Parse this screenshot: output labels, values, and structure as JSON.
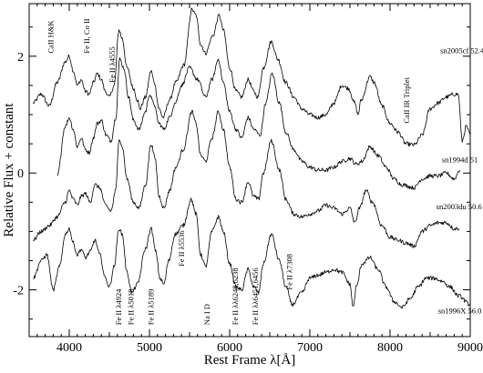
{
  "chart_data": {
    "type": "line",
    "title": "",
    "xlabel": "Rest Frame λ[Å]",
    "ylabel": "Relative Flux + constant",
    "xlim": [
      3500,
      9000
    ],
    "ylim": [
      -2.8,
      2.9
    ],
    "grid": false,
    "x_ticks": [
      4000,
      5000,
      6000,
      7000,
      8000,
      9000
    ],
    "y_ticks": [
      -2,
      0,
      2
    ],
    "series": [
      {
        "name": "sn2005cf 52.4",
        "label_pos": [
          8900,
          2.05
        ],
        "points": [
          [
            3550,
            1.2
          ],
          [
            3650,
            1.35
          ],
          [
            3750,
            1.15
          ],
          [
            3850,
            1.55
          ],
          [
            3950,
            1.9
          ],
          [
            4000,
            2.0
          ],
          [
            4050,
            1.75
          ],
          [
            4100,
            1.5
          ],
          [
            4150,
            1.6
          ],
          [
            4200,
            1.4
          ],
          [
            4250,
            1.35
          ],
          [
            4300,
            1.55
          ],
          [
            4350,
            1.7
          ],
          [
            4400,
            1.6
          ],
          [
            4450,
            1.4
          ],
          [
            4500,
            1.3
          ],
          [
            4560,
            1.5
          ],
          [
            4620,
            2.45
          ],
          [
            4660,
            2.3
          ],
          [
            4720,
            1.8
          ],
          [
            4800,
            1.45
          ],
          [
            4850,
            1.25
          ],
          [
            4880,
            1.1
          ],
          [
            4950,
            1.3
          ],
          [
            5020,
            1.75
          ],
          [
            5060,
            1.55
          ],
          [
            5120,
            1.1
          ],
          [
            5170,
            0.95
          ],
          [
            5250,
            1.25
          ],
          [
            5330,
            1.55
          ],
          [
            5430,
            1.85
          ],
          [
            5530,
            2.8
          ],
          [
            5580,
            2.7
          ],
          [
            5640,
            2.2
          ],
          [
            5700,
            2.05
          ],
          [
            5790,
            2.35
          ],
          [
            5870,
            2.7
          ],
          [
            5920,
            2.45
          ],
          [
            6000,
            1.8
          ],
          [
            6080,
            1.4
          ],
          [
            6150,
            1.3
          ],
          [
            6230,
            1.6
          ],
          [
            6300,
            1.4
          ],
          [
            6350,
            1.3
          ],
          [
            6420,
            1.8
          ],
          [
            6520,
            2.25
          ],
          [
            6600,
            1.95
          ],
          [
            6700,
            1.55
          ],
          [
            6800,
            1.3
          ],
          [
            6900,
            1.1
          ],
          [
            7000,
            1.0
          ],
          [
            7100,
            0.95
          ],
          [
            7200,
            1.0
          ],
          [
            7300,
            1.2
          ],
          [
            7400,
            1.5
          ],
          [
            7480,
            1.45
          ],
          [
            7560,
            1.2
          ],
          [
            7600,
            1.0
          ],
          [
            7640,
            1.25
          ],
          [
            7750,
            1.65
          ],
          [
            7800,
            1.55
          ],
          [
            7900,
            1.15
          ],
          [
            8000,
            0.85
          ],
          [
            8100,
            0.7
          ],
          [
            8200,
            0.5
          ],
          [
            8300,
            0.48
          ],
          [
            8400,
            0.65
          ],
          [
            8500,
            1.1
          ],
          [
            8600,
            1.2
          ],
          [
            8700,
            1.3
          ],
          [
            8800,
            1.35
          ],
          [
            8850,
            1.35
          ],
          [
            8900,
            0.55
          ],
          [
            8950,
            0.8
          ],
          [
            9000,
            0.65
          ]
        ]
      },
      {
        "name": "sn1994d 51",
        "label_pos": [
          8870,
          0.18
        ],
        "points": [
          [
            3850,
            -0.05
          ],
          [
            3950,
            0.8
          ],
          [
            4000,
            0.95
          ],
          [
            4050,
            0.75
          ],
          [
            4100,
            0.45
          ],
          [
            4150,
            0.6
          ],
          [
            4200,
            0.4
          ],
          [
            4250,
            0.35
          ],
          [
            4300,
            0.6
          ],
          [
            4350,
            0.85
          ],
          [
            4400,
            0.9
          ],
          [
            4460,
            0.65
          ],
          [
            4520,
            0.55
          ],
          [
            4580,
            0.95
          ],
          [
            4630,
            1.95
          ],
          [
            4680,
            1.8
          ],
          [
            4740,
            1.3
          ],
          [
            4800,
            0.9
          ],
          [
            4870,
            0.75
          ],
          [
            4950,
            1.05
          ],
          [
            5000,
            1.35
          ],
          [
            5050,
            1.2
          ],
          [
            5120,
            0.85
          ],
          [
            5180,
            0.75
          ],
          [
            5250,
            0.95
          ],
          [
            5320,
            1.2
          ],
          [
            5400,
            1.5
          ],
          [
            5500,
            1.8
          ],
          [
            5600,
            1.6
          ],
          [
            5700,
            1.3
          ],
          [
            5780,
            1.6
          ],
          [
            5860,
            1.95
          ],
          [
            5920,
            1.55
          ],
          [
            6000,
            1.05
          ],
          [
            6080,
            0.75
          ],
          [
            6150,
            0.6
          ],
          [
            6230,
            0.95
          ],
          [
            6300,
            0.75
          ],
          [
            6380,
            0.65
          ],
          [
            6450,
            1.2
          ],
          [
            6530,
            1.7
          ],
          [
            6620,
            1.2
          ],
          [
            6700,
            0.7
          ],
          [
            6800,
            0.4
          ],
          [
            6900,
            0.2
          ],
          [
            7000,
            0.1
          ],
          [
            7100,
            0.05
          ],
          [
            7200,
            0.05
          ],
          [
            7300,
            0.1
          ],
          [
            7400,
            0.2
          ],
          [
            7500,
            0.25
          ],
          [
            7580,
            0.15
          ],
          [
            7650,
            0.2
          ],
          [
            7750,
            0.45
          ],
          [
            7850,
            0.3
          ],
          [
            7950,
            0.1
          ],
          [
            8050,
            -0.1
          ],
          [
            8150,
            -0.2
          ],
          [
            8300,
            -0.25
          ],
          [
            8400,
            -0.1
          ],
          [
            8500,
            -0.05
          ],
          [
            8600,
            -0.05
          ],
          [
            8700,
            0.0
          ],
          [
            8800,
            -0.1
          ],
          [
            8870,
            0.05
          ]
        ]
      },
      {
        "name": "sn2003du 50.6",
        "label_pos": [
          8860,
          -0.62
        ],
        "points": [
          [
            3550,
            -1.15
          ],
          [
            3650,
            -1.0
          ],
          [
            3750,
            -0.9
          ],
          [
            3850,
            -0.75
          ],
          [
            3950,
            -0.5
          ],
          [
            4000,
            -0.3
          ],
          [
            4050,
            -0.45
          ],
          [
            4100,
            -0.55
          ],
          [
            4150,
            -0.4
          ],
          [
            4200,
            -0.35
          ],
          [
            4260,
            -0.5
          ],
          [
            4320,
            -0.2
          ],
          [
            4380,
            -0.25
          ],
          [
            4450,
            -0.55
          ],
          [
            4520,
            -0.65
          ],
          [
            4580,
            -0.3
          ],
          [
            4620,
            0.6
          ],
          [
            4660,
            0.45
          ],
          [
            4720,
            -0.1
          ],
          [
            4800,
            -0.5
          ],
          [
            4870,
            -0.6
          ],
          [
            4950,
            -0.2
          ],
          [
            5020,
            0.5
          ],
          [
            5070,
            0.25
          ],
          [
            5120,
            -0.4
          ],
          [
            5180,
            -0.6
          ],
          [
            5250,
            -0.3
          ],
          [
            5330,
            0.1
          ],
          [
            5420,
            0.4
          ],
          [
            5530,
            1.05
          ],
          [
            5580,
            0.85
          ],
          [
            5640,
            0.3
          ],
          [
            5700,
            0.2
          ],
          [
            5780,
            0.6
          ],
          [
            5860,
            1.05
          ],
          [
            5920,
            0.75
          ],
          [
            6000,
            0.1
          ],
          [
            6080,
            -0.45
          ],
          [
            6150,
            -0.5
          ],
          [
            6230,
            -0.15
          ],
          [
            6300,
            -0.4
          ],
          [
            6360,
            -0.45
          ],
          [
            6420,
            0.0
          ],
          [
            6520,
            0.55
          ],
          [
            6620,
            0.05
          ],
          [
            6700,
            -0.45
          ],
          [
            6800,
            -0.7
          ],
          [
            6900,
            -0.75
          ],
          [
            7000,
            -0.7
          ],
          [
            7100,
            -0.65
          ],
          [
            7200,
            -0.55
          ],
          [
            7300,
            -0.6
          ],
          [
            7400,
            -0.7
          ],
          [
            7500,
            -0.6
          ],
          [
            7560,
            -0.85
          ],
          [
            7620,
            -0.6
          ],
          [
            7700,
            -0.3
          ],
          [
            7780,
            -0.5
          ],
          [
            7900,
            -0.9
          ],
          [
            8000,
            -1.1
          ],
          [
            8100,
            -1.15
          ],
          [
            8200,
            -1.2
          ],
          [
            8300,
            -1.25
          ],
          [
            8400,
            -1.0
          ],
          [
            8500,
            -0.9
          ],
          [
            8600,
            -0.85
          ],
          [
            8700,
            -0.85
          ],
          [
            8800,
            -0.95
          ],
          [
            8860,
            -0.95
          ]
        ]
      },
      {
        "name": "sn1996X 56.0",
        "label_pos": [
          8870,
          -2.4
        ],
        "points": [
          [
            3550,
            -1.8
          ],
          [
            3650,
            -1.5
          ],
          [
            3720,
            -1.4
          ],
          [
            3800,
            -2.0
          ],
          [
            3880,
            -1.6
          ],
          [
            3950,
            -1.05
          ],
          [
            4000,
            -0.95
          ],
          [
            4050,
            -1.2
          ],
          [
            4100,
            -1.4
          ],
          [
            4150,
            -1.3
          ],
          [
            4200,
            -1.45
          ],
          [
            4260,
            -1.35
          ],
          [
            4320,
            -1.15
          ],
          [
            4380,
            -1.4
          ],
          [
            4450,
            -1.8
          ],
          [
            4500,
            -1.95
          ],
          [
            4560,
            -1.6
          ],
          [
            4620,
            -0.95
          ],
          [
            4660,
            -1.05
          ],
          [
            4720,
            -1.7
          ],
          [
            4780,
            -2.05
          ],
          [
            4850,
            -1.9
          ],
          [
            4950,
            -1.3
          ],
          [
            5020,
            -0.95
          ],
          [
            5080,
            -1.35
          ],
          [
            5130,
            -1.8
          ],
          [
            5180,
            -1.9
          ],
          [
            5240,
            -1.5
          ],
          [
            5320,
            -1.05
          ],
          [
            5420,
            -0.9
          ],
          [
            5520,
            -0.45
          ],
          [
            5580,
            -0.7
          ],
          [
            5640,
            -1.4
          ],
          [
            5700,
            -1.6
          ],
          [
            5780,
            -1.0
          ],
          [
            5860,
            -0.75
          ],
          [
            5920,
            -1.0
          ],
          [
            6000,
            -1.55
          ],
          [
            6080,
            -1.95
          ],
          [
            6150,
            -2.0
          ],
          [
            6230,
            -1.65
          ],
          [
            6300,
            -1.95
          ],
          [
            6360,
            -2.05
          ],
          [
            6420,
            -1.55
          ],
          [
            6520,
            -1.05
          ],
          [
            6620,
            -1.5
          ],
          [
            6700,
            -1.95
          ],
          [
            6780,
            -2.25
          ],
          [
            6900,
            -2.05
          ],
          [
            7000,
            -1.8
          ],
          [
            7100,
            -1.75
          ],
          [
            7200,
            -1.7
          ],
          [
            7300,
            -1.65
          ],
          [
            7400,
            -1.7
          ],
          [
            7500,
            -1.9
          ],
          [
            7540,
            -2.3
          ],
          [
            7580,
            -1.95
          ],
          [
            7650,
            -1.55
          ],
          [
            7750,
            -1.45
          ],
          [
            7850,
            -1.65
          ],
          [
            7950,
            -1.95
          ],
          [
            8050,
            -2.2
          ],
          [
            8150,
            -2.3
          ],
          [
            8250,
            -2.15
          ],
          [
            8350,
            -1.95
          ],
          [
            8450,
            -1.8
          ],
          [
            8550,
            -1.8
          ],
          [
            8650,
            -1.85
          ],
          [
            8750,
            -1.95
          ],
          [
            8850,
            -2.1
          ],
          [
            9000,
            -2.25
          ]
        ]
      }
    ],
    "annotations": [
      {
        "text": "CaII H&K",
        "x": 3800,
        "y": 2.05
      },
      {
        "text": "Fe II, Co II",
        "x": 4250,
        "y": 2.05
      },
      {
        "text": "Fe II λ4555",
        "x": 4570,
        "y": 1.55
      },
      {
        "text": "CaII IR Triplet",
        "x": 8240,
        "y": 0.85
      },
      {
        "text": "Fe II λ4924",
        "x": 4650,
        "y": -2.6
      },
      {
        "text": "Fe II λ5018",
        "x": 4800,
        "y": -2.6
      },
      {
        "text": "Fe II λ5189",
        "x": 5050,
        "y": -2.6
      },
      {
        "text": "Fe II λ5536",
        "x": 5430,
        "y": -1.6
      },
      {
        "text": "Na I D",
        "x": 5750,
        "y": -2.6
      },
      {
        "text": "Fe II λλ6248,6238",
        "x": 6100,
        "y": -2.6
      },
      {
        "text": "Fe II λλ6451,6456",
        "x": 6350,
        "y": -2.6
      },
      {
        "text": "Fe II λ7308",
        "x": 6780,
        "y": -2.0
      }
    ]
  }
}
